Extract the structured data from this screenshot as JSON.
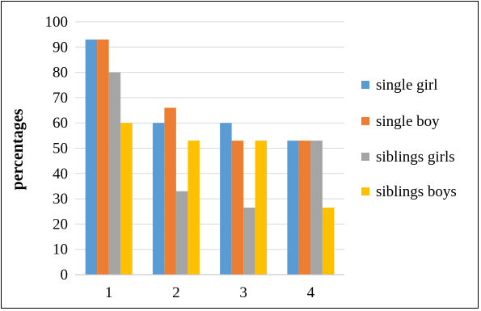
{
  "chart_data": {
    "type": "bar",
    "title": "",
    "xlabel": "",
    "ylabel": "percentages",
    "ylim": [
      0,
      100
    ],
    "yticks": [
      0,
      10,
      20,
      30,
      40,
      50,
      60,
      70,
      80,
      90,
      100
    ],
    "categories": [
      "1",
      "2",
      "3",
      "4"
    ],
    "grid": true,
    "legend_position": "right",
    "series": [
      {
        "name": "single girl",
        "color": "#5B9BD5",
        "values": [
          93,
          60,
          60,
          53
        ]
      },
      {
        "name": "single boy",
        "color": "#ED7D31",
        "values": [
          93,
          66,
          53,
          53
        ]
      },
      {
        "name": "siblings girls",
        "color": "#A5A5A5",
        "values": [
          80,
          33,
          26.5,
          53
        ]
      },
      {
        "name": "siblings boys",
        "color": "#FFC000",
        "values": [
          60,
          53,
          53,
          26.5
        ]
      }
    ]
  }
}
